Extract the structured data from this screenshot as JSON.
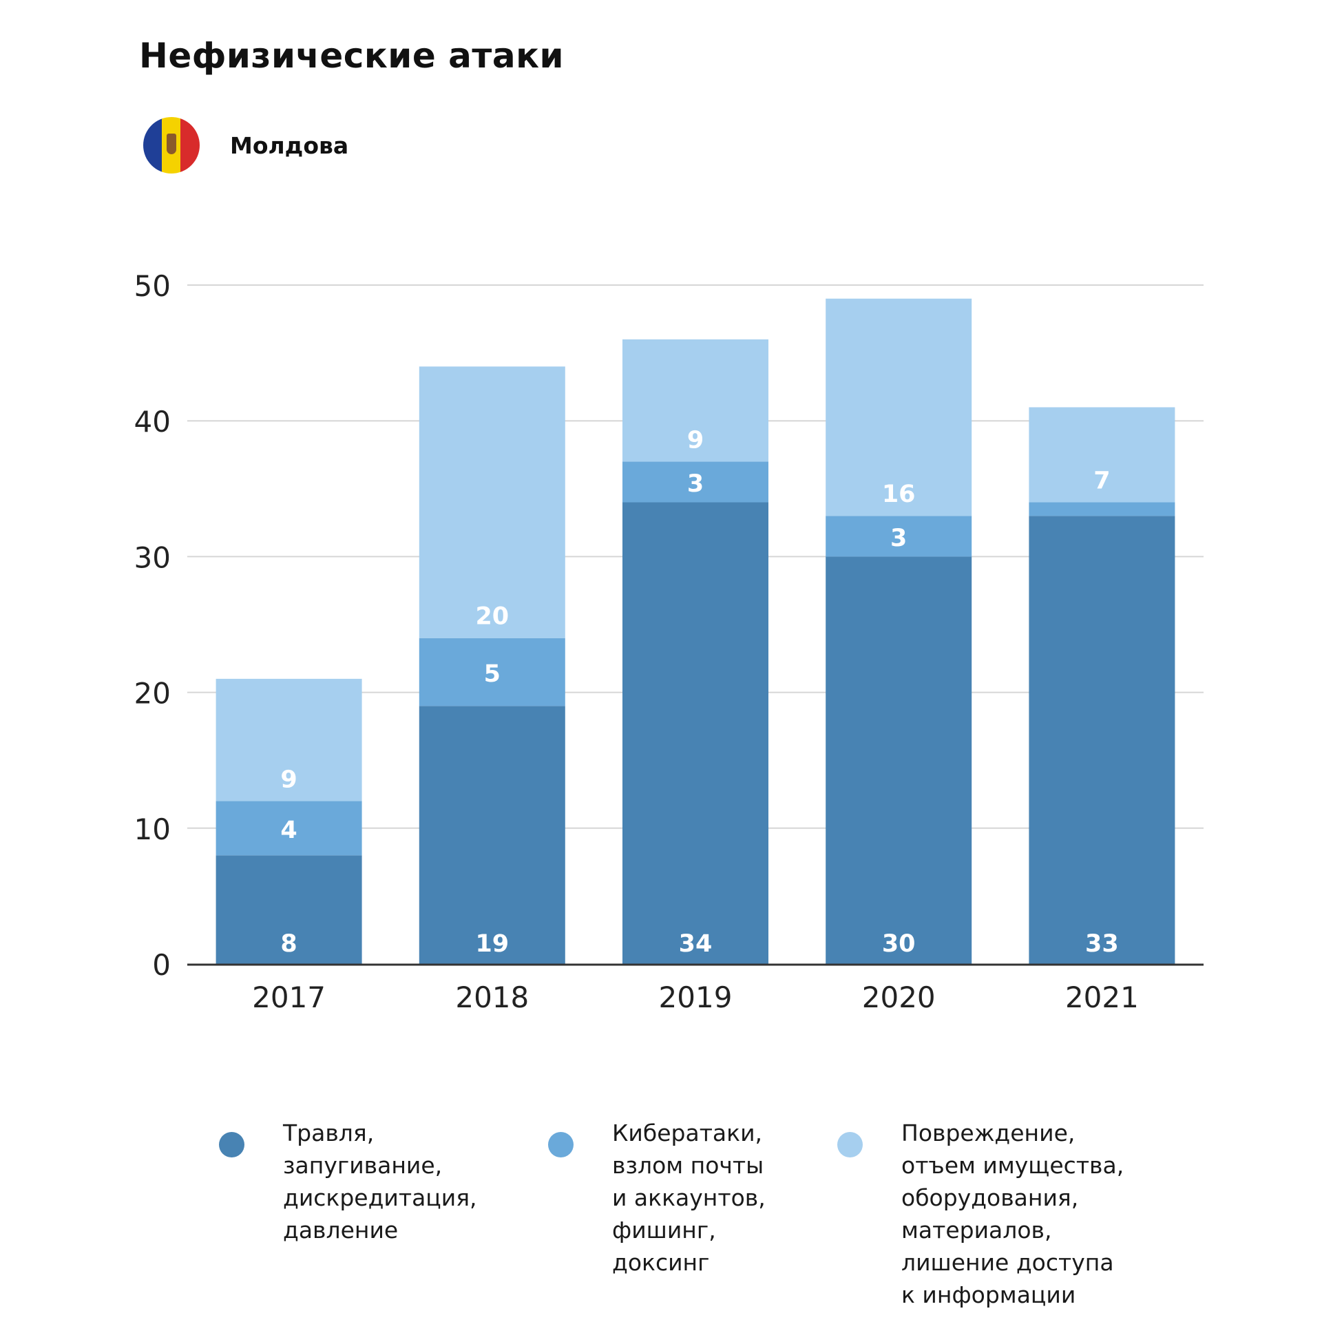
{
  "title": "Нефизические атаки",
  "country": {
    "label": "Молдова",
    "flag_colors": [
      "#1f3f97",
      "#f5d200",
      "#d82b2b"
    ]
  },
  "chart_data": {
    "type": "bar",
    "stacked": true,
    "title": "Нефизические атаки",
    "categories": [
      "2017",
      "2018",
      "2019",
      "2020",
      "2021"
    ],
    "series": [
      {
        "name": "Травля,\nзапугивание,\nдискредитация,\nдавление",
        "values": [
          8,
          19,
          34,
          30,
          33
        ],
        "color": "#4883b3"
      },
      {
        "name": "Кибератаки,\nвзлом почты\nи аккаунтов,\nфишинг,\nдоксинг",
        "values": [
          4,
          5,
          3,
          3,
          1
        ],
        "color": "#6aa9da"
      },
      {
        "name": "Повреждение,\nотъем имущества,\nоборудования,\nматериалов,\nлишение доступа\nк информации",
        "values": [
          9,
          20,
          9,
          16,
          7
        ],
        "color": "#a6cfef"
      }
    ],
    "data_labels": [
      [
        "8",
        "19",
        "34",
        "30",
        "33"
      ],
      [
        "4",
        "5",
        "3",
        "3",
        ""
      ],
      [
        "9",
        "20",
        "9",
        "16",
        "7"
      ]
    ],
    "yticks": [
      0,
      10,
      20,
      30,
      40,
      50
    ],
    "ylim": [
      0,
      50
    ],
    "grid": true,
    "legend_position": "bottom"
  }
}
